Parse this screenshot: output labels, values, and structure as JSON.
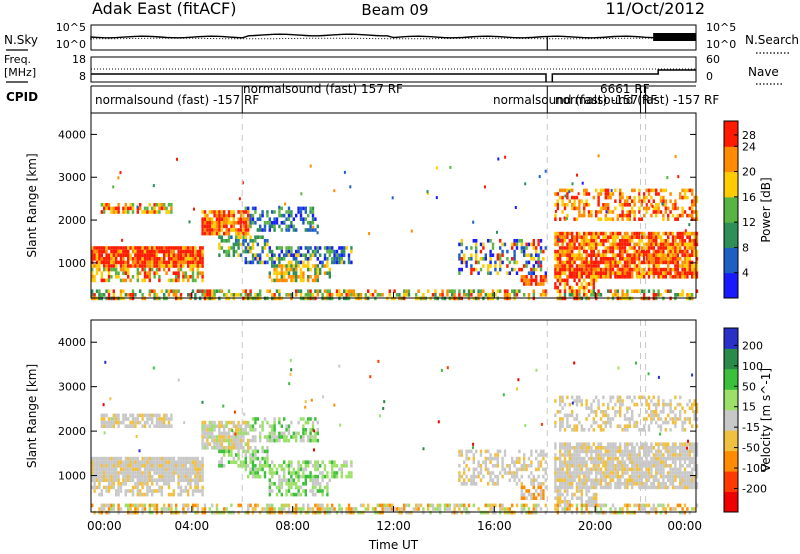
{
  "header": {
    "title": "Adak East (fitACF)",
    "beam": "Beam 09",
    "date": "11/Oct/2012"
  },
  "side_labels": {
    "nsky": "N.Sky",
    "freq_line1": "Freq.",
    "freq_line2": "[MHz]",
    "cpid": "CPID",
    "nsearch": "N.Search",
    "nave": "Nave"
  },
  "noise_panel": {
    "left_ticks": [
      "10^5",
      "10^0"
    ],
    "right_ticks": [
      "10^5",
      "10^0"
    ]
  },
  "freq_panel": {
    "left_ticks": [
      "18",
      "8"
    ],
    "right_ticks": [
      "60",
      "0"
    ]
  },
  "cpid_labels": [
    {
      "text": "normalsound (fast) -157 RF"
    },
    {
      "text": "normalsound (fast) 157 RF"
    },
    {
      "text": "normalsound (fast) -157 RF"
    },
    {
      "text": "6661 RF"
    },
    {
      "text": "normalsound (fast) -157 RF"
    }
  ],
  "chart_data": [
    {
      "type": "heatmap",
      "name": "power",
      "ylabel": "Slant Range [km]",
      "xlabel": "",
      "yticks": [
        1000,
        2000,
        3000,
        4000
      ],
      "ylim": [
        180,
        4500
      ],
      "colorbar_label": "Power [dB]",
      "colorbar_ticks": [
        "4",
        "8",
        "12",
        "16",
        "20",
        "24",
        "28"
      ],
      "colors": [
        "#1a1aff",
        "#1f5fc4",
        "#2f8f58",
        "#5ab444",
        "#ffcc00",
        "#ff8c00",
        "#ff1a00"
      ]
    },
    {
      "type": "heatmap",
      "name": "velocity",
      "ylabel": "Slant Range [km]",
      "xlabel": "Time UT",
      "yticks": [
        1000,
        2000,
        3000,
        4000
      ],
      "ylim": [
        180,
        4500
      ],
      "colorbar_label": "Velocity [m s^-1]",
      "colorbar_ticks": [
        "200",
        "100",
        "50",
        "15",
        "-15",
        "-50",
        "-100",
        "-200"
      ],
      "colors": [
        "#2830c8",
        "#2a8a4a",
        "#3cc03c",
        "#9ce06a",
        "#c8c8c8",
        "#f0c040",
        "#ff8c00",
        "#ff3a00",
        "#ee0000"
      ]
    }
  ],
  "x_axis": {
    "label": "Time UT",
    "ticks": [
      "00:00",
      "04:00",
      "08:00",
      "12:00",
      "16:00",
      "20:00",
      "00:00"
    ]
  }
}
